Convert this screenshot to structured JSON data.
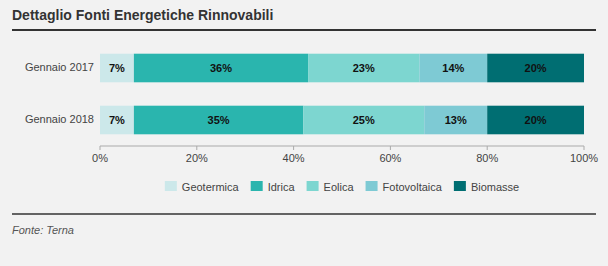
{
  "chart_data": {
    "type": "bar",
    "orientation": "horizontal",
    "stacked": true,
    "title": "Dettaglio Fonti Energetiche Rinnovabili",
    "annotations": [
      "Fonte: Terna"
    ],
    "categories": [
      "Gennaio 2017",
      "Gennaio 2018"
    ],
    "series": [
      {
        "name": "Geotermica",
        "color": "#cce8ea",
        "values": [
          7,
          7
        ],
        "value_labels": [
          "7%",
          "7%"
        ]
      },
      {
        "name": "Idrica",
        "color": "#2ab5ae",
        "values": [
          36,
          35
        ],
        "value_labels": [
          "36%",
          "35%"
        ]
      },
      {
        "name": "Eolica",
        "color": "#7dd6d0",
        "values": [
          23,
          25
        ],
        "value_labels": [
          "23%",
          "25%"
        ]
      },
      {
        "name": "Fotovoltaica",
        "color": "#7ecad4",
        "values": [
          14,
          13
        ],
        "value_labels": [
          "14%",
          "13%"
        ]
      },
      {
        "name": "Biomasse",
        "color": "#006e72",
        "values": [
          20,
          20
        ],
        "value_labels": [
          "20%",
          "20%"
        ]
      }
    ],
    "xlim": [
      0,
      100
    ],
    "xticks": [
      {
        "value": 0,
        "label": "0%"
      },
      {
        "value": 20,
        "label": "20%"
      },
      {
        "value": 40,
        "label": "40%"
      },
      {
        "value": 60,
        "label": "60%"
      },
      {
        "value": 80,
        "label": "80%"
      },
      {
        "value": 100,
        "label": "100%"
      }
    ],
    "grid": false,
    "legend": "bottom",
    "data_labels": true
  }
}
